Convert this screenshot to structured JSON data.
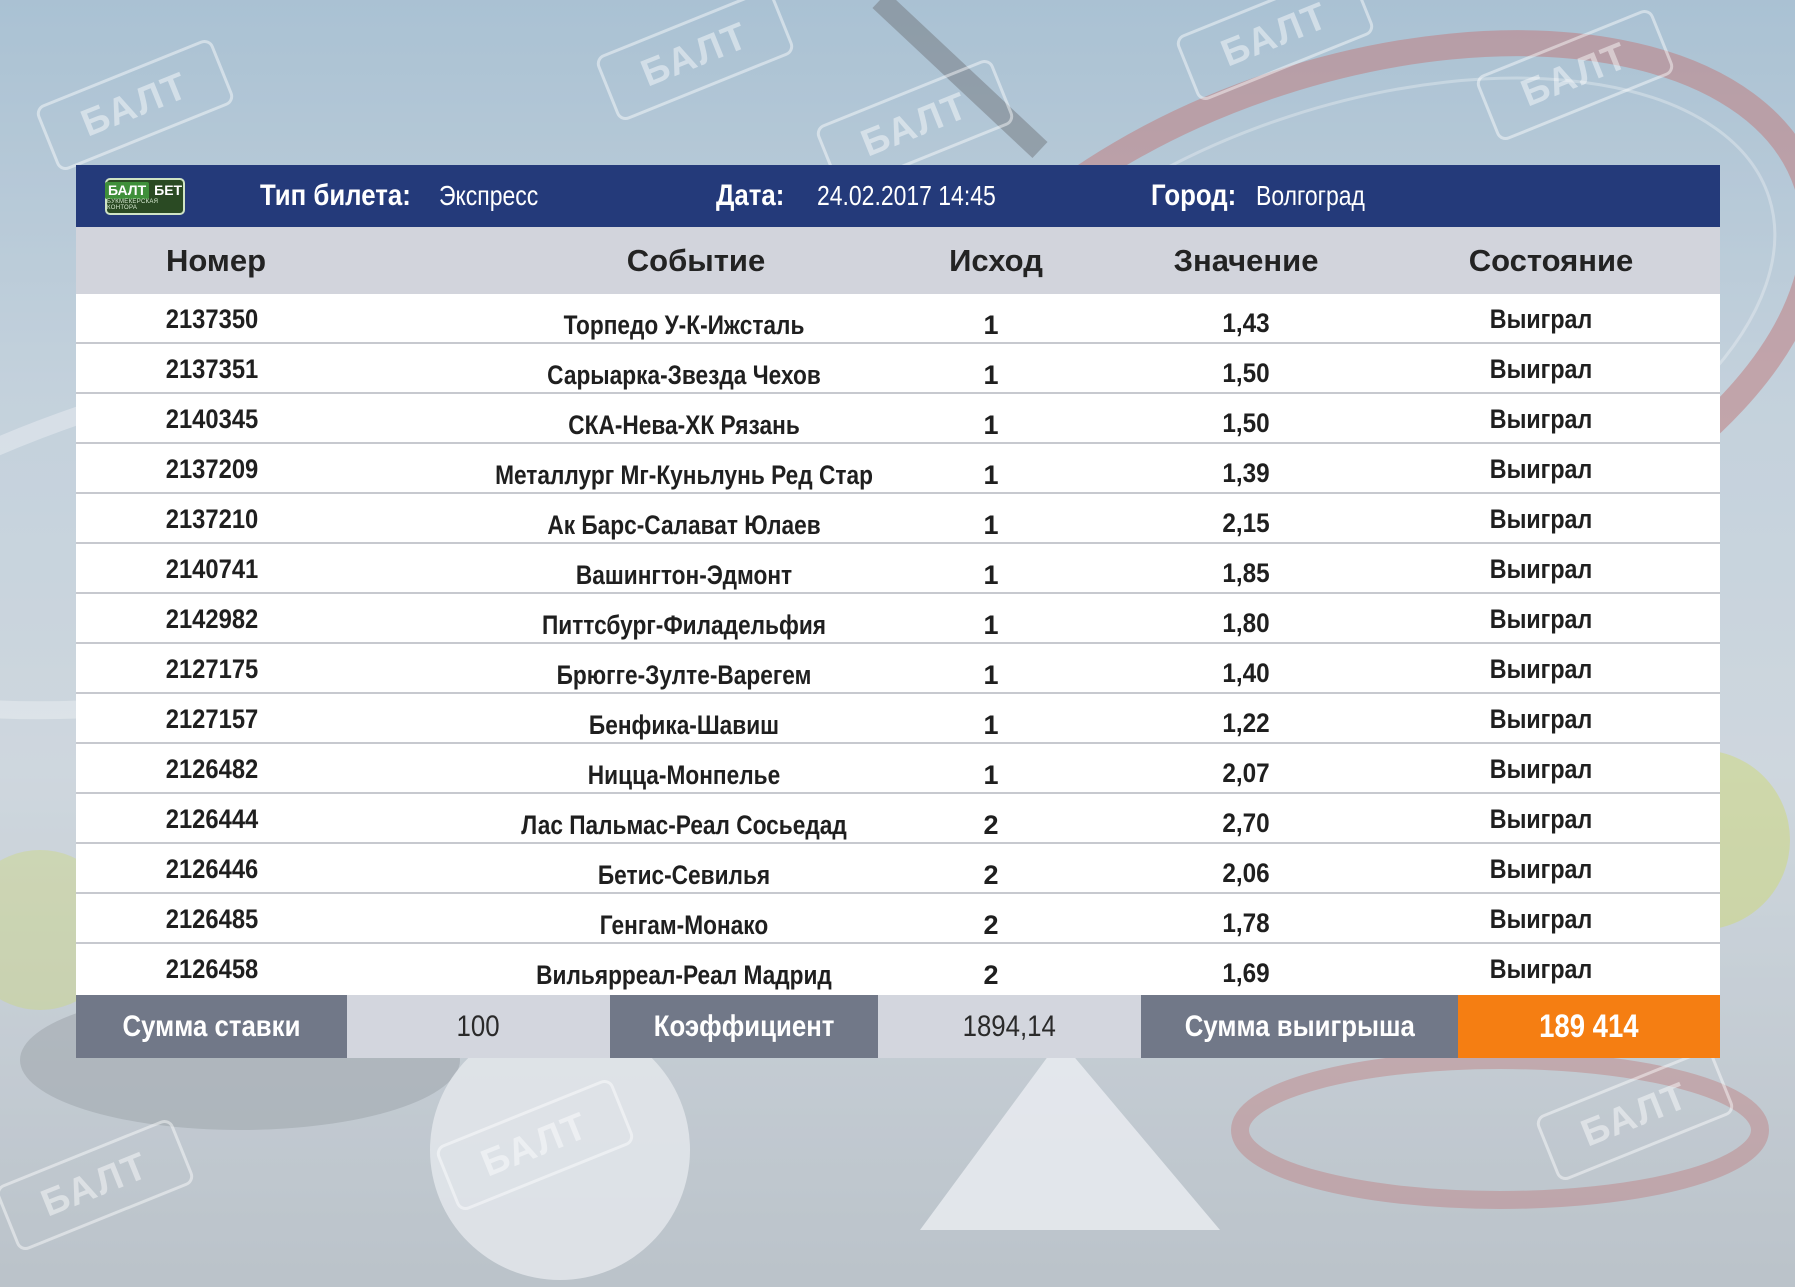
{
  "brand": {
    "logo_main_left": "БАЛТ",
    "logo_main_right": "БЕТ",
    "logo_sub": "БУКМЕКЕРСКАЯ КОНТОРА",
    "color": "#243a7a"
  },
  "header": {
    "ticket_type_label": "Тип билета:",
    "ticket_type_value": "Экспресс",
    "date_label": "Дата:",
    "date_value": "24.02.2017 14:45",
    "city_label": "Город:",
    "city_value": "Волгоград"
  },
  "columns": {
    "number": "Номер",
    "event": "Событие",
    "outcome": "Исход",
    "value": "Значение",
    "status": "Состояние"
  },
  "rows": [
    {
      "number": "2137350",
      "event": "Торпедо У-К-Ижсталь",
      "outcome": "1",
      "value": "1,43",
      "status": "Выиграл"
    },
    {
      "number": "2137351",
      "event": "Сарыарка-Звезда Чехов",
      "outcome": "1",
      "value": "1,50",
      "status": "Выиграл"
    },
    {
      "number": "2140345",
      "event": "СКА-Нева-ХК Рязань",
      "outcome": "1",
      "value": "1,50",
      "status": "Выиграл"
    },
    {
      "number": "2137209",
      "event": "Металлург Мг-Куньлунь Ред Стар",
      "outcome": "1",
      "value": "1,39",
      "status": "Выиграл"
    },
    {
      "number": "2137210",
      "event": "Ак Барс-Салават Юлаев",
      "outcome": "1",
      "value": "2,15",
      "status": "Выиграл"
    },
    {
      "number": "2140741",
      "event": "Вашингтон-Эдмонт",
      "outcome": "1",
      "value": "1,85",
      "status": "Выиграл"
    },
    {
      "number": "2142982",
      "event": "Питтсбург-Филадельфия",
      "outcome": "1",
      "value": "1,80",
      "status": "Выиграл"
    },
    {
      "number": "2127175",
      "event": "Брюгге-Зулте-Варегем",
      "outcome": "1",
      "value": "1,40",
      "status": "Выиграл"
    },
    {
      "number": "2127157",
      "event": "Бенфика-Шавиш",
      "outcome": "1",
      "value": "1,22",
      "status": "Выиграл"
    },
    {
      "number": "2126482",
      "event": "Ницца-Монпелье",
      "outcome": "1",
      "value": "2,07",
      "status": "Выиграл"
    },
    {
      "number": "2126444",
      "event": "Лас Пальмас-Реал Сосьедад",
      "outcome": "2",
      "value": "2,70",
      "status": "Выиграл"
    },
    {
      "number": "2126446",
      "event": "Бетис-Севилья",
      "outcome": "2",
      "value": "2,06",
      "status": "Выиграл"
    },
    {
      "number": "2126485",
      "event": "Генгам-Монако",
      "outcome": "2",
      "value": "1,78",
      "status": "Выиграл"
    },
    {
      "number": "2126458",
      "event": "Вильярреал-Реал Мадрид",
      "outcome": "2",
      "value": "1,69",
      "status": "Выиграл"
    }
  ],
  "footer": {
    "stake_label": "Сумма ставки",
    "stake_value": "100",
    "coef_label": "Коэффициент",
    "coef_value": "1894,14",
    "win_label": "Сумма выигрыша",
    "win_value": "189 414",
    "win_color": "#f57e12"
  }
}
